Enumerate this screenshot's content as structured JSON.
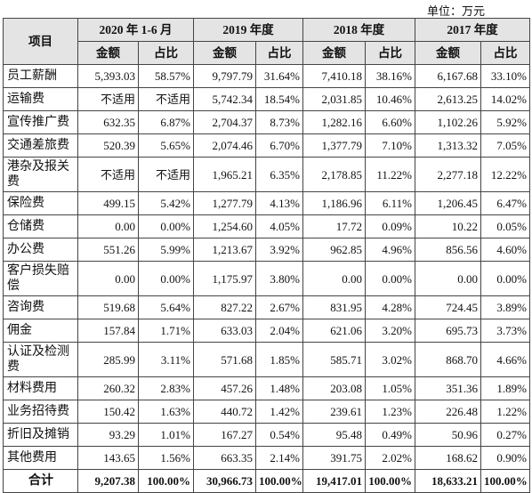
{
  "unit": "单位：万元",
  "header": {
    "item": "项目",
    "periods": [
      "2020 年 1-6 月",
      "2019 年度",
      "2018 年度",
      "2017 年度"
    ],
    "subheaders": [
      "金额",
      "占比",
      "金额",
      "占比",
      "金额",
      "占比",
      "金额",
      "占比"
    ]
  },
  "table": {
    "rows": [
      [
        "员工薪酬",
        "5,393.03",
        "58.57%",
        "9,797.79",
        "31.64%",
        "7,410.18",
        "38.16%",
        "6,167.68",
        "33.10%"
      ],
      [
        "运输费",
        "不适用",
        "不适用",
        "5,742.34",
        "18.54%",
        "2,031.85",
        "10.46%",
        "2,613.25",
        "14.02%"
      ],
      [
        "宣传推广费",
        "632.35",
        "6.87%",
        "2,704.37",
        "8.73%",
        "1,282.16",
        "6.60%",
        "1,102.26",
        "5.92%"
      ],
      [
        "交通差旅费",
        "520.39",
        "5.65%",
        "2,074.46",
        "6.70%",
        "1,377.79",
        "7.10%",
        "1,313.32",
        "7.05%"
      ],
      [
        "港杂及报关费",
        "不适用",
        "不适用",
        "1,965.21",
        "6.35%",
        "2,178.85",
        "11.22%",
        "2,277.18",
        "12.22%"
      ],
      [
        "保险费",
        "499.15",
        "5.42%",
        "1,277.79",
        "4.13%",
        "1,186.96",
        "6.11%",
        "1,206.45",
        "6.47%"
      ],
      [
        "仓储费",
        "0.00",
        "0.00%",
        "1,254.60",
        "4.05%",
        "17.72",
        "0.09%",
        "10.22",
        "0.05%"
      ],
      [
        "办公费",
        "551.26",
        "5.99%",
        "1,213.67",
        "3.92%",
        "962.85",
        "4.96%",
        "856.56",
        "4.60%"
      ],
      [
        "客户损失赔偿",
        "0.00",
        "0.00%",
        "1,175.97",
        "3.80%",
        "0.00",
        "0.00%",
        "0.00",
        "0.00%"
      ],
      [
        "咨询费",
        "519.68",
        "5.64%",
        "827.22",
        "2.67%",
        "831.95",
        "4.28%",
        "724.45",
        "3.89%"
      ],
      [
        "佣金",
        "157.84",
        "1.71%",
        "633.03",
        "2.04%",
        "621.06",
        "3.20%",
        "695.73",
        "3.73%"
      ],
      [
        "认证及检测费",
        "285.99",
        "3.11%",
        "571.68",
        "1.85%",
        "585.71",
        "3.02%",
        "868.70",
        "4.66%"
      ],
      [
        "材料费用",
        "260.32",
        "2.83%",
        "457.26",
        "1.48%",
        "203.08",
        "1.05%",
        "351.36",
        "1.89%"
      ],
      [
        "业务招待费",
        "150.42",
        "1.63%",
        "440.72",
        "1.42%",
        "239.61",
        "1.23%",
        "226.48",
        "1.22%"
      ],
      [
        "折旧及摊销",
        "93.29",
        "1.01%",
        "167.27",
        "0.54%",
        "95.48",
        "0.49%",
        "50.96",
        "0.27%"
      ],
      [
        "其他费用",
        "143.65",
        "1.56%",
        "663.35",
        "2.14%",
        "391.75",
        "2.02%",
        "168.62",
        "0.90%"
      ]
    ],
    "total": [
      "合计",
      "9,207.38",
      "100.00%",
      "30,966.73",
      "100.00%",
      "19,417.01",
      "100.00%",
      "18,633.21",
      "100.00%"
    ]
  }
}
